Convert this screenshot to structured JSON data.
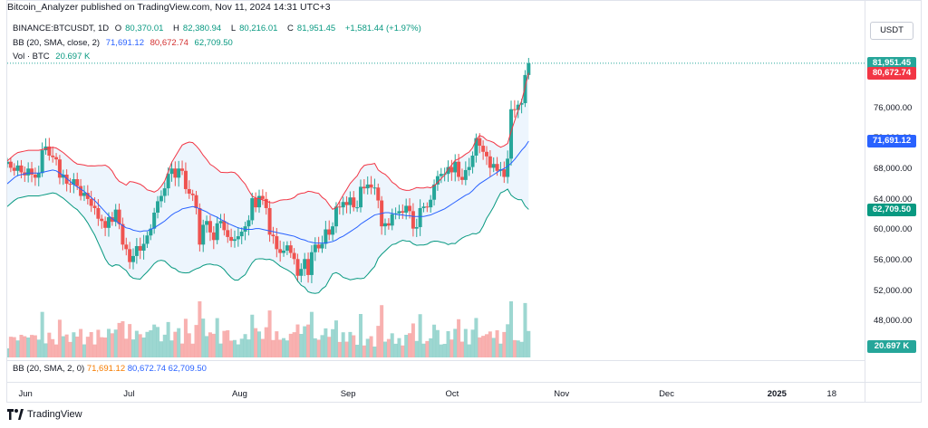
{
  "header": {
    "publisher_text": "Bitcoin_Analyzer published on TradingView.com, Nov 11, 2024 14:31 UTC+3"
  },
  "symbol_line": {
    "symbol": "BINANCE:BTCUSDT, 1D",
    "open_label": "O",
    "open": "80,370.01",
    "high_label": "H",
    "high": "82,380.94",
    "low_label": "L",
    "low": "80,216.01",
    "close_label": "C",
    "close": "81,951.45",
    "change": "+1,581.44 (+1.97%)"
  },
  "bb_line": {
    "label": "BB (20, SMA, close, 2)",
    "basis": "71,691.12",
    "upper": "80,672.74",
    "lower": "62,709.50"
  },
  "vol_line": {
    "label": "Vol · BTC",
    "value": "20.697 K"
  },
  "bb_bottom": {
    "label": "BB (20, SMA, 2, 0)",
    "basis": "71,691.12",
    "upper": "80,672.74",
    "lower": "62,709.50"
  },
  "currency": "USDT",
  "price_tags": {
    "last": "81,951.45",
    "upper": "80,672.74",
    "basis": "71,691.12",
    "lower": "62,709.50",
    "volume": "20.697 K"
  },
  "colors": {
    "up": "#26a69a",
    "down": "#ef5350",
    "basis": "#2962ff",
    "upper_band": "#f23645",
    "lower_band": "#089981",
    "band_fill": "#e9f2fc",
    "last_price_tag": "#26a69a",
    "upper_tag": "#f23645",
    "basis_tag": "#2962ff",
    "lower_tag": "#089981"
  },
  "footer": {
    "brand": "TradingView"
  },
  "chart_data": {
    "type": "candlestick",
    "title": "",
    "y_ticks": [
      "76,000.00",
      "72,000.00",
      "68,000.00",
      "64,000.00",
      "60,000.00",
      "56,000.00",
      "52,000.00",
      "48,000.00"
    ],
    "y_tick_values": [
      76000,
      72000,
      68000,
      64000,
      60000,
      56000,
      52000,
      48000
    ],
    "ylim": [
      46000,
      83600
    ],
    "x_ticks": [
      "Jun",
      "Jul",
      "Aug",
      "Sep",
      "Oct",
      "Nov",
      "Dec",
      "2025",
      "18"
    ],
    "x_tick_days": [
      5.3,
      35.3,
      66.3,
      97.3,
      127.3,
      158.3,
      188.3,
      219.3,
      236.3
    ],
    "x_range_days": [
      0,
      245
    ],
    "start_date": "2024-05-27",
    "closes": [
      69000,
      68200,
      67800,
      68500,
      67600,
      67200,
      68100,
      67300,
      66900,
      67500,
      70500,
      71000,
      69800,
      69600,
      69300,
      66900,
      67300,
      66100,
      66000,
      66700,
      65800,
      64500,
      64900,
      64100,
      63200,
      62900,
      61500,
      61200,
      60300,
      61700,
      61100,
      62700,
      60800,
      58100,
      57500,
      55800,
      56600,
      57900,
      57300,
      58200,
      59300,
      60200,
      62300,
      63800,
      64500,
      65500,
      67400,
      68100,
      66900,
      68100,
      67800,
      65400,
      64800,
      64600,
      62900,
      58100,
      60700,
      61200,
      59700,
      58700,
      60900,
      61200,
      60000,
      59100,
      58600,
      58800,
      59200,
      59800,
      60500,
      61300,
      64200,
      63000,
      64500,
      64100,
      62900,
      59400,
      59200,
      57500,
      57000,
      57300,
      58000,
      57000,
      56200,
      54000,
      54900,
      56200,
      54100,
      57100,
      58100,
      57600,
      58200,
      60100,
      59400,
      60500,
      63100,
      63000,
      63700,
      63300,
      64300,
      63000,
      63000,
      65700,
      65500,
      66000,
      65600,
      65600,
      63900,
      60500,
      60900,
      60600,
      62100,
      62200,
      62500,
      62300,
      63200,
      62500,
      60200,
      60400,
      62900,
      63100,
      63000,
      64000,
      66000,
      67100,
      67400,
      67400,
      68300,
      67600,
      69000,
      67000,
      66600,
      67900,
      68300,
      69800,
      72100,
      71100,
      70300,
      69700,
      68200,
      68700,
      67800,
      68000,
      67000,
      69400,
      75900,
      75800,
      76500,
      76700,
      80400,
      81950
    ],
    "volume_note": "Daily BTC volume bars beneath candles; last value 20.697 K",
    "bb_basis": [
      66100,
      66500,
      66900,
      67200,
      67300,
      67400,
      67500,
      67500,
      67500,
      67500,
      67600,
      67700,
      67800,
      67900,
      67800,
      67500,
      67200,
      66800,
      66400,
      66000,
      65700,
      65400,
      65100,
      64700,
      64300,
      63900,
      63400,
      62900,
      62400,
      61900,
      61500,
      61200,
      60900,
      60600,
      60300,
      60200,
      60000,
      59900,
      59800,
      59900,
      59900,
      60100,
      60300,
      60600,
      60900,
      61200,
      61600,
      62000,
      62300,
      62500,
      62800,
      62900,
      63000,
      63100,
      63000,
      62800,
      62600,
      62400,
      62100,
      61900,
      61700,
      61400,
      61200,
      60900,
      60700,
      60500,
      60300,
      60200,
      60100,
      60100,
      60100,
      60200,
      60200,
      60100,
      60000,
      59900,
      59800,
      59700,
      59600,
      59500,
      59400,
      59300,
      59200,
      59000,
      58800,
      58700,
      58500,
      58400,
      58300,
      58300,
      58300,
      58300,
      58400,
      58500,
      58700,
      59000,
      59200,
      59500,
      59800,
      60100,
      60400,
      60800,
      61100,
      61400,
      61700,
      62000,
      62100,
      62200,
      62300,
      62300,
      62200,
      62100,
      62000,
      62000,
      61900,
      61900,
      61800,
      61800,
      61800,
      61800,
      61900,
      62000,
      62200,
      62400,
      62600,
      62800,
      63100,
      63400,
      63700,
      64000,
      64300,
      64600,
      64800,
      65200,
      65700,
      66100,
      66400,
      66700,
      67000,
      67300,
      67600,
      67900,
      68100,
      68400,
      68800,
      69300,
      69900,
      70500,
      71000,
      71700
    ]
  }
}
